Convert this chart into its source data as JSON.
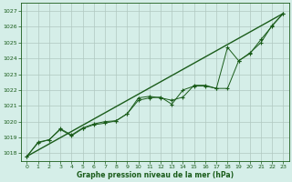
{
  "title": "Graphe pression niveau de la mer (hPa)",
  "bg_color": "#d5eee8",
  "grid_color": "#b0c8c0",
  "line_color": "#1a5c1a",
  "xlim": [
    -0.5,
    23.5
  ],
  "ylim": [
    1017.5,
    1027.5
  ],
  "xticks": [
    0,
    1,
    2,
    3,
    4,
    5,
    6,
    7,
    8,
    9,
    10,
    11,
    12,
    13,
    14,
    15,
    16,
    17,
    18,
    19,
    20,
    21,
    22,
    23
  ],
  "yticks": [
    1018,
    1019,
    1020,
    1021,
    1022,
    1023,
    1024,
    1025,
    1026,
    1027
  ],
  "series1": [
    1017.8,
    1018.7,
    1018.85,
    1019.5,
    1019.1,
    1019.55,
    1019.8,
    1019.9,
    1020.05,
    1020.5,
    1021.5,
    1021.6,
    1021.5,
    1021.35,
    1021.55,
    1022.3,
    1022.3,
    1022.1,
    1022.1,
    1023.85,
    1024.3,
    1025.2,
    1026.05,
    1026.85
  ],
  "series2": [
    1017.8,
    1018.65,
    1018.85,
    1019.55,
    1019.15,
    1019.6,
    1019.85,
    1020.0,
    1020.05,
    1020.5,
    1021.35,
    1021.5,
    1021.55,
    1021.1,
    1022.0,
    1022.25,
    1022.25,
    1022.1,
    1024.7,
    1023.85,
    1024.35,
    1025.0,
    1026.1,
    1026.85
  ],
  "trend_x": [
    0,
    23
  ],
  "trend_y": [
    1017.8,
    1026.85
  ],
  "figsize": [
    3.2,
    2.0
  ],
  "dpi": 100
}
